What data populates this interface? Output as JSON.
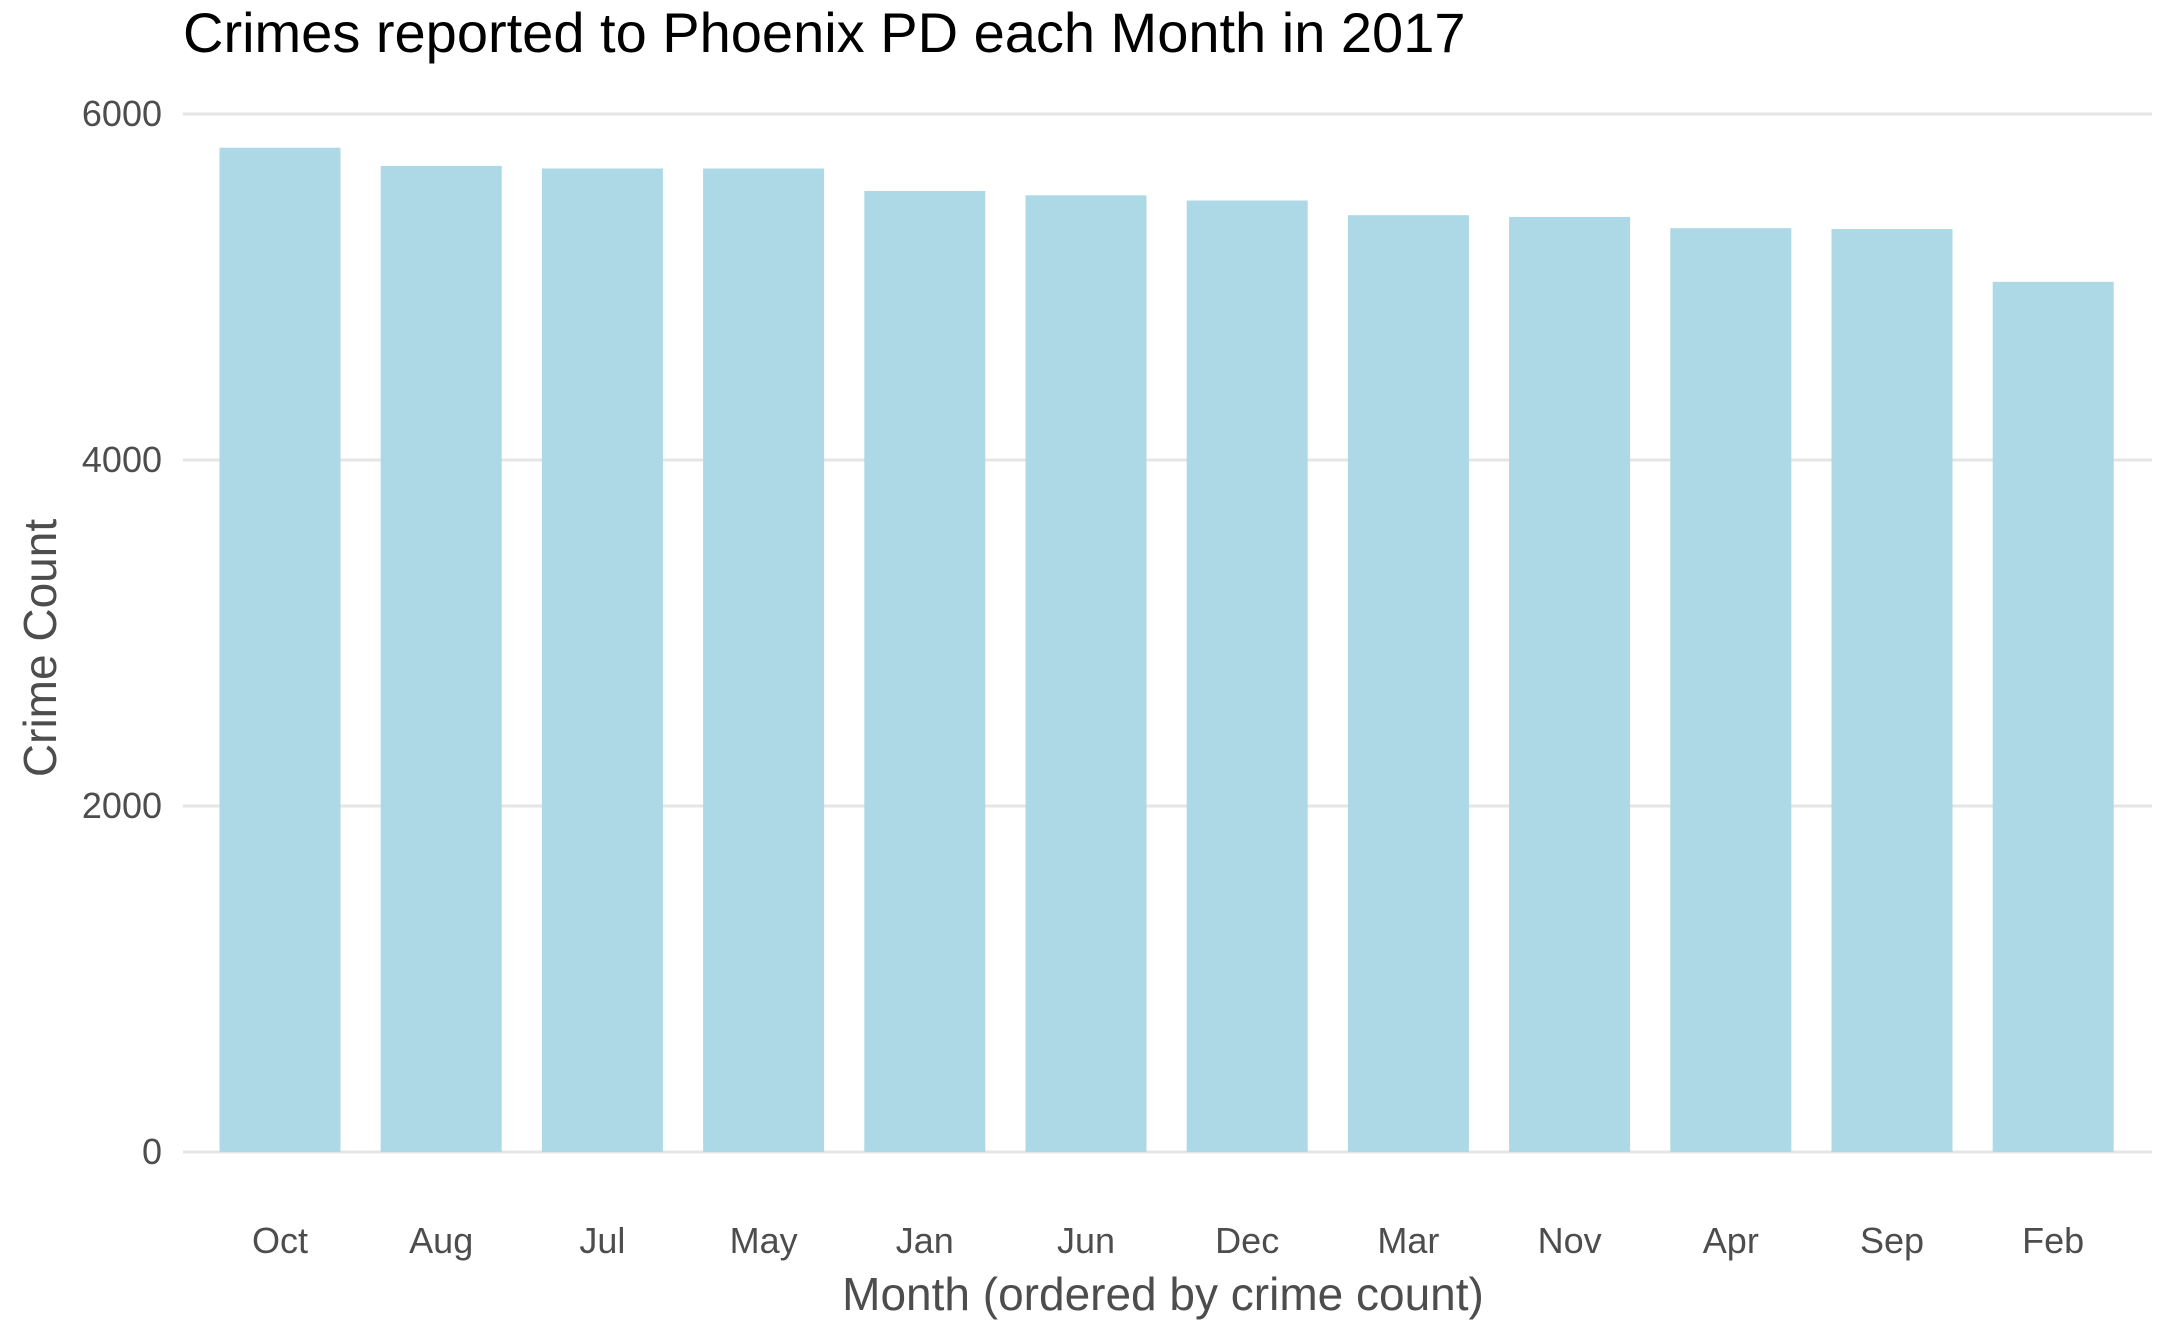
{
  "chart_data": {
    "type": "bar",
    "title": "Crimes reported to Phoenix PD each Month in 2017",
    "xlabel": "Month (ordered by crime count)",
    "ylabel": "Crime Count",
    "categories": [
      "Oct",
      "Aug",
      "Jul",
      "May",
      "Jan",
      "Jun",
      "Dec",
      "Mar",
      "Nov",
      "Apr",
      "Sep",
      "Feb"
    ],
    "values": [
      5805,
      5700,
      5685,
      5685,
      5555,
      5530,
      5500,
      5415,
      5405,
      5340,
      5335,
      5030
    ],
    "ylim": [
      0,
      6000
    ],
    "yticks": [
      0,
      2000,
      4000,
      6000
    ],
    "ytick_labels": [
      "0",
      "2000",
      "4000",
      "6000"
    ],
    "bar_color": "#add8e6",
    "grid": "horizontal major lines",
    "legend": "none"
  }
}
